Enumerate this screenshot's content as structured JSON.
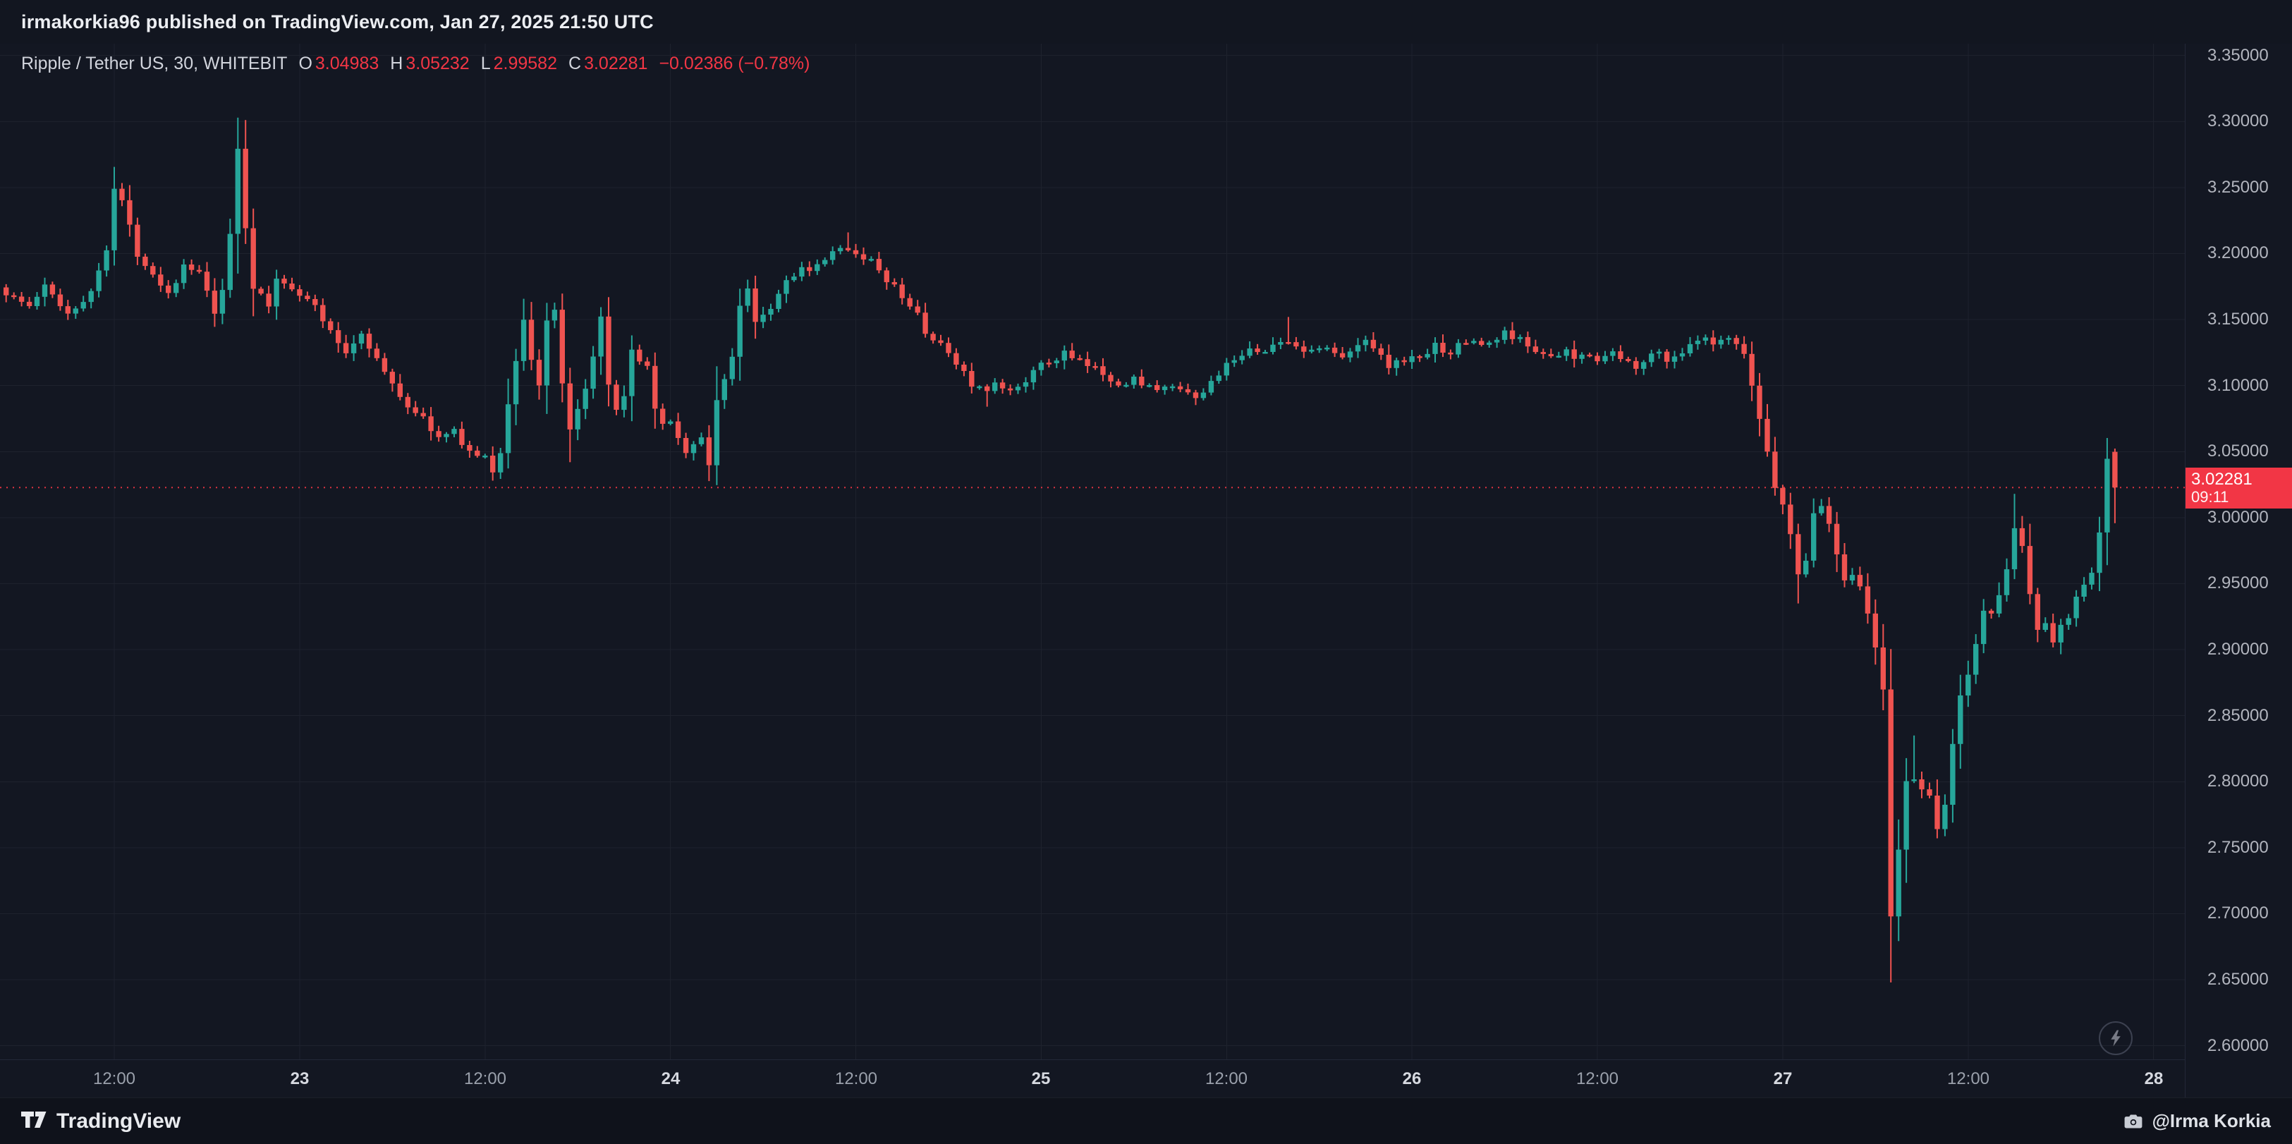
{
  "header": {
    "published_line": "irmakorkia96 published on TradingView.com, Jan 27, 2025 21:50 UTC"
  },
  "legend": {
    "symbol": "Ripple / Tether US, 30, WHITEBIT",
    "o_label": "O",
    "o": "3.04983",
    "h_label": "H",
    "h": "3.05232",
    "l_label": "L",
    "l": "2.99582",
    "c_label": "C",
    "c": "3.02281",
    "change": "−0.02386 (−0.78%)"
  },
  "price_label": {
    "price": "3.02281",
    "countdown": "09:11"
  },
  "footer": {
    "brand": "TradingView",
    "credit": "@Irma Korkia"
  },
  "icons": {
    "realtime": "lightning-icon",
    "snapshot": "camera-icon",
    "brand": "tradingview-logo-icon"
  },
  "colors": {
    "bg": "#131722",
    "up": "#26a69a",
    "down": "#ef5350",
    "accent_red": "#f23645",
    "grid": "#1e222d",
    "axis_text": "#b2b5be"
  },
  "chart_data": {
    "type": "candlestick",
    "title": "Ripple / Tether US, 30, WHITEBIT",
    "interval_minutes": 30,
    "current_bar": {
      "open": 3.04983,
      "high": 3.05232,
      "low": 2.99582,
      "close": 3.02281,
      "change": -0.02386,
      "change_pct": -0.78
    },
    "current_price_line": 3.02281,
    "y_axis": {
      "min": 2.6,
      "max": 3.35,
      "step": 0.05,
      "decimals": 5
    },
    "x_axis": {
      "labels": [
        {
          "text": "12:00",
          "index": 14,
          "major": false
        },
        {
          "text": "23",
          "index": 38,
          "major": true
        },
        {
          "text": "12:00",
          "index": 62,
          "major": false
        },
        {
          "text": "24",
          "index": 86,
          "major": true
        },
        {
          "text": "12:00",
          "index": 110,
          "major": false
        },
        {
          "text": "25",
          "index": 134,
          "major": true
        },
        {
          "text": "12:00",
          "index": 158,
          "major": false
        },
        {
          "text": "26",
          "index": 182,
          "major": true
        },
        {
          "text": "12:00",
          "index": 206,
          "major": false
        },
        {
          "text": "27",
          "index": 230,
          "major": true
        },
        {
          "text": "12:00",
          "index": 254,
          "major": false
        },
        {
          "text": "28",
          "index": 278,
          "major": true
        }
      ]
    },
    "bars_count": 274,
    "price_path_anchors": [
      [
        0,
        3.17
      ],
      [
        3,
        3.16
      ],
      [
        5,
        3.175
      ],
      [
        8,
        3.155
      ],
      [
        11,
        3.17
      ],
      [
        13,
        3.205
      ],
      [
        14,
        3.25
      ],
      [
        15,
        3.24
      ],
      [
        17,
        3.2
      ],
      [
        19,
        3.185
      ],
      [
        21,
        3.17
      ],
      [
        23,
        3.19
      ],
      [
        25,
        3.185
      ],
      [
        27,
        3.155
      ],
      [
        28,
        3.17
      ],
      [
        29,
        3.215
      ],
      [
        30,
        3.28
      ],
      [
        31,
        3.22
      ],
      [
        32,
        3.175
      ],
      [
        34,
        3.16
      ],
      [
        35,
        3.18
      ],
      [
        37,
        3.175
      ],
      [
        38,
        3.17
      ],
      [
        40,
        3.16
      ],
      [
        42,
        3.14
      ],
      [
        44,
        3.125
      ],
      [
        46,
        3.14
      ],
      [
        47,
        3.13
      ],
      [
        49,
        3.11
      ],
      [
        50,
        3.1
      ],
      [
        52,
        3.085
      ],
      [
        54,
        3.075
      ],
      [
        56,
        3.06
      ],
      [
        58,
        3.065
      ],
      [
        60,
        3.05
      ],
      [
        62,
        3.045
      ],
      [
        63,
        3.035
      ],
      [
        64,
        3.05
      ],
      [
        66,
        3.12
      ],
      [
        67,
        3.15
      ],
      [
        68,
        3.12
      ],
      [
        69,
        3.1
      ],
      [
        70,
        3.15
      ],
      [
        71,
        3.155
      ],
      [
        72,
        3.1
      ],
      [
        73,
        3.065
      ],
      [
        74,
        3.08
      ],
      [
        76,
        3.12
      ],
      [
        77,
        3.15
      ],
      [
        78,
        3.1
      ],
      [
        79,
        3.08
      ],
      [
        80,
        3.09
      ],
      [
        81,
        3.125
      ],
      [
        83,
        3.115
      ],
      [
        84,
        3.08
      ],
      [
        85,
        3.07
      ],
      [
        86,
        3.075
      ],
      [
        87,
        3.06
      ],
      [
        88,
        3.05
      ],
      [
        90,
        3.06
      ],
      [
        91,
        3.04
      ],
      [
        92,
        3.09
      ],
      [
        94,
        3.12
      ],
      [
        95,
        3.16
      ],
      [
        96,
        3.175
      ],
      [
        97,
        3.15
      ],
      [
        99,
        3.16
      ],
      [
        100,
        3.17
      ],
      [
        101,
        3.18
      ],
      [
        103,
        3.19
      ],
      [
        104,
        3.185
      ],
      [
        106,
        3.195
      ],
      [
        107,
        3.2
      ],
      [
        109,
        3.205
      ],
      [
        110,
        3.2
      ],
      [
        112,
        3.195
      ],
      [
        113,
        3.185
      ],
      [
        115,
        3.175
      ],
      [
        116,
        3.165
      ],
      [
        118,
        3.155
      ],
      [
        119,
        3.14
      ],
      [
        121,
        3.13
      ],
      [
        122,
        3.125
      ],
      [
        124,
        3.11
      ],
      [
        125,
        3.1
      ],
      [
        127,
        3.095
      ],
      [
        128,
        3.1
      ],
      [
        130,
        3.095
      ],
      [
        131,
        3.1
      ],
      [
        133,
        3.11
      ],
      [
        134,
        3.115
      ],
      [
        136,
        3.12
      ],
      [
        137,
        3.125
      ],
      [
        138,
        3.12
      ],
      [
        140,
        3.115
      ],
      [
        142,
        3.11
      ],
      [
        143,
        3.105
      ],
      [
        145,
        3.1
      ],
      [
        146,
        3.105
      ],
      [
        148,
        3.1
      ],
      [
        149,
        3.095
      ],
      [
        151,
        3.1
      ],
      [
        152,
        3.095
      ],
      [
        154,
        3.09
      ],
      [
        155,
        3.095
      ],
      [
        157,
        3.11
      ],
      [
        158,
        3.115
      ],
      [
        160,
        3.12
      ],
      [
        161,
        3.13
      ],
      [
        163,
        3.125
      ],
      [
        164,
        3.13
      ],
      [
        166,
        3.135
      ],
      [
        167,
        3.13
      ],
      [
        169,
        3.125
      ],
      [
        170,
        3.13
      ],
      [
        172,
        3.125
      ],
      [
        173,
        3.12
      ],
      [
        175,
        3.13
      ],
      [
        176,
        3.135
      ],
      [
        178,
        3.125
      ],
      [
        179,
        3.115
      ],
      [
        181,
        3.12
      ],
      [
        182,
        3.12
      ],
      [
        184,
        3.125
      ],
      [
        185,
        3.13
      ],
      [
        187,
        3.125
      ],
      [
        188,
        3.13
      ],
      [
        190,
        3.135
      ],
      [
        191,
        3.13
      ],
      [
        193,
        3.135
      ],
      [
        194,
        3.14
      ],
      [
        196,
        3.135
      ],
      [
        197,
        3.13
      ],
      [
        199,
        3.125
      ],
      [
        200,
        3.12
      ],
      [
        202,
        3.125
      ],
      [
        203,
        3.12
      ],
      [
        205,
        3.125
      ],
      [
        206,
        3.12
      ],
      [
        208,
        3.125
      ],
      [
        209,
        3.12
      ],
      [
        211,
        3.115
      ],
      [
        212,
        3.12
      ],
      [
        214,
        3.125
      ],
      [
        215,
        3.12
      ],
      [
        217,
        3.125
      ],
      [
        218,
        3.13
      ],
      [
        220,
        3.135
      ],
      [
        221,
        3.13
      ],
      [
        223,
        3.135
      ],
      [
        224,
        3.13
      ],
      [
        225,
        3.12
      ],
      [
        226,
        3.1
      ],
      [
        227,
        3.075
      ],
      [
        228,
        3.05
      ],
      [
        229,
        3.025
      ],
      [
        230,
        3.01
      ],
      [
        231,
        2.985
      ],
      [
        232,
        2.96
      ],
      [
        233,
        2.97
      ],
      [
        234,
        3.0
      ],
      [
        235,
        3.01
      ],
      [
        236,
        2.995
      ],
      [
        237,
        2.975
      ],
      [
        238,
        2.955
      ],
      [
        239,
        2.96
      ],
      [
        240,
        2.95
      ],
      [
        241,
        2.925
      ],
      [
        242,
        2.9
      ],
      [
        243,
        2.87
      ],
      [
        244,
        2.7
      ],
      [
        245,
        2.745
      ],
      [
        246,
        2.8
      ],
      [
        247,
        2.805
      ],
      [
        248,
        2.79
      ],
      [
        249,
        2.785
      ],
      [
        250,
        2.765
      ],
      [
        251,
        2.78
      ],
      [
        252,
        2.83
      ],
      [
        253,
        2.865
      ],
      [
        254,
        2.88
      ],
      [
        255,
        2.905
      ],
      [
        256,
        2.93
      ],
      [
        257,
        2.925
      ],
      [
        258,
        2.945
      ],
      [
        259,
        2.965
      ],
      [
        260,
        2.995
      ],
      [
        261,
        2.975
      ],
      [
        262,
        2.945
      ],
      [
        263,
        2.915
      ],
      [
        264,
        2.92
      ],
      [
        265,
        2.905
      ],
      [
        266,
        2.915
      ],
      [
        267,
        2.925
      ],
      [
        268,
        2.94
      ],
      [
        269,
        2.945
      ],
      [
        270,
        2.96
      ],
      [
        271,
        2.985
      ],
      [
        272,
        3.045
      ],
      [
        273,
        3.02281
      ]
    ],
    "extremes": [
      {
        "i": 14,
        "h": 3.263
      },
      {
        "i": 30,
        "h": 3.295
      },
      {
        "i": 63,
        "l": 3.028
      },
      {
        "i": 73,
        "l": 3.042
      },
      {
        "i": 91,
        "l": 3.031
      },
      {
        "i": 109,
        "h": 3.216
      },
      {
        "i": 127,
        "l": 3.084
      },
      {
        "i": 166,
        "h": 3.152
      },
      {
        "i": 232,
        "l": 2.935
      },
      {
        "i": 244,
        "l": 2.665
      },
      {
        "i": 247,
        "h": 2.835
      },
      {
        "i": 260,
        "h": 3.018
      },
      {
        "i": 272,
        "h": 3.056
      }
    ]
  }
}
